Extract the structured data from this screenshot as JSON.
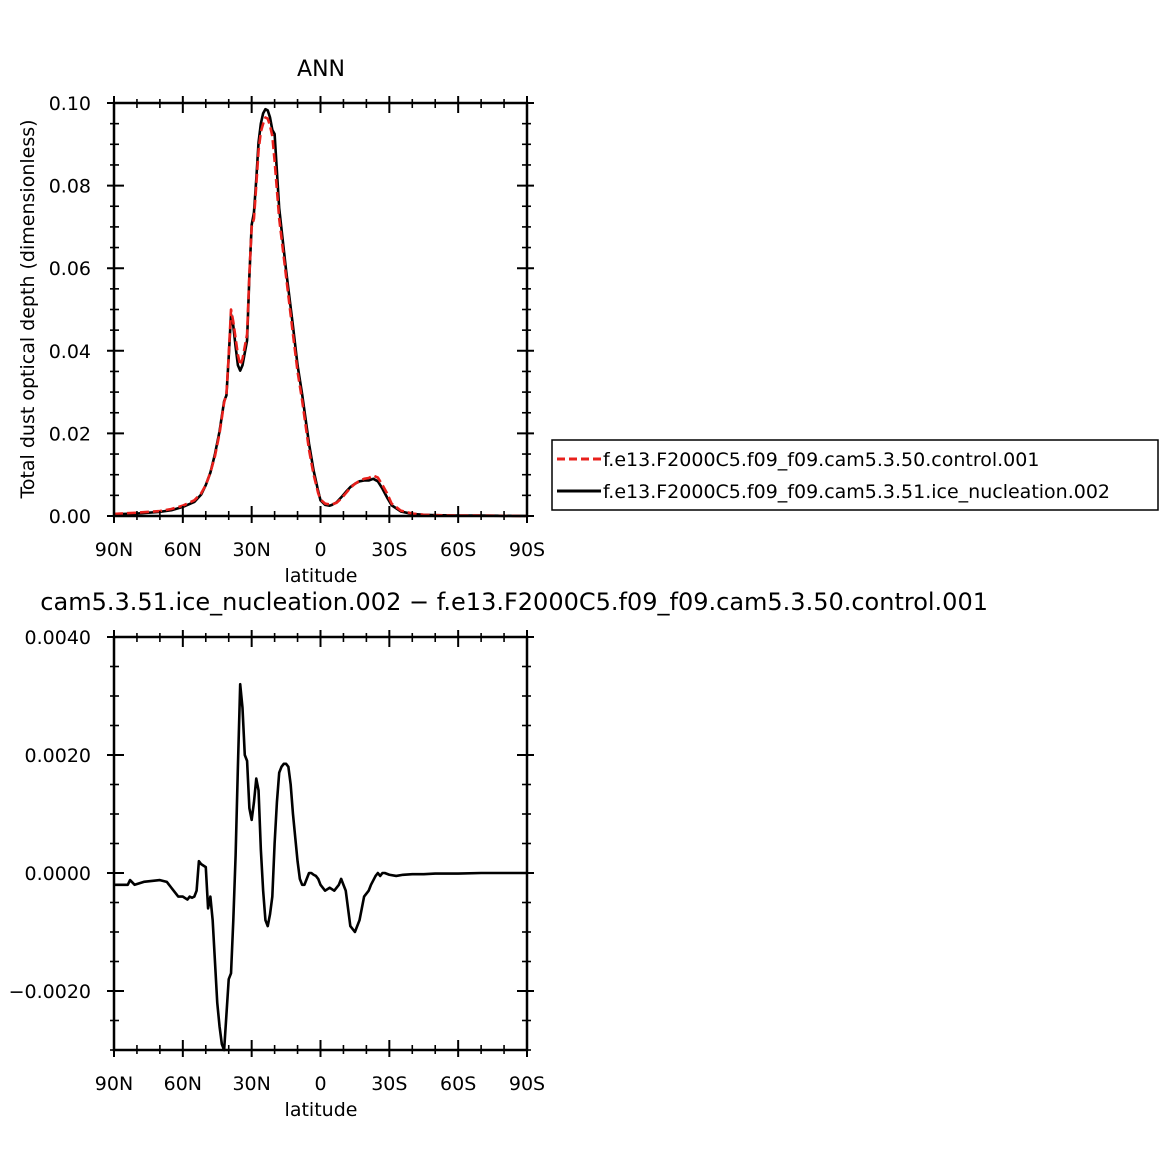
{
  "figure": {
    "top_title": "ANN",
    "diff_title": "cam5.3.51.ice_nucleation.002 − f.e13.F2000C5.f09_f09.cam5.3.50.control.001"
  },
  "chart_data": [
    {
      "type": "line",
      "title": "ANN",
      "xlabel": "latitude",
      "ylabel": "Total dust optical depth (dimensionless)",
      "xlim": [
        90,
        -90
      ],
      "ylim": [
        0,
        0.1
      ],
      "x_tick_values": [
        90,
        60,
        30,
        0,
        -30,
        -60,
        -90
      ],
      "x_tick_labels": [
        "90N",
        "60N",
        "30N",
        "0",
        "30S",
        "60S",
        "90S"
      ],
      "y_tick_values": [
        0,
        0.02,
        0.04,
        0.06,
        0.08,
        0.1
      ],
      "y_tick_labels": [
        "0.00",
        "0.02",
        "0.04",
        "0.06",
        "0.08",
        "0.10"
      ],
      "legend": "right",
      "series": [
        {
          "name": "f.e13.F2000C5.f09_f09.cam5.3.50.control.001",
          "color": "#e8201c",
          "dash": "dashed",
          "x": [
            90,
            80,
            70,
            65,
            60,
            55,
            52,
            50,
            48,
            46,
            44,
            42,
            41,
            40,
            39,
            38,
            37,
            36,
            35,
            34,
            33,
            32,
            31,
            30,
            29,
            28,
            27,
            26,
            25,
            24,
            23,
            22,
            21,
            20,
            18,
            15,
            12,
            10,
            8,
            6,
            5,
            3,
            1,
            0,
            -2,
            -4,
            -5,
            -7,
            -9,
            -11,
            -13,
            -15,
            -17,
            -19,
            -21,
            -23,
            -25,
            -27,
            -29,
            -31,
            -35,
            -40,
            -45,
            -50,
            -60,
            -70,
            -80,
            -90
          ],
          "y": [
            0.0005,
            0.0008,
            0.0012,
            0.0017,
            0.0025,
            0.0038,
            0.0055,
            0.0075,
            0.0105,
            0.0145,
            0.02,
            0.0275,
            0.0295,
            0.039,
            0.05,
            0.047,
            0.043,
            0.039,
            0.0365,
            0.038,
            0.041,
            0.044,
            0.0585,
            0.07,
            0.072,
            0.08,
            0.0885,
            0.093,
            0.095,
            0.0965,
            0.0962,
            0.0945,
            0.092,
            0.086,
            0.072,
            0.058,
            0.044,
            0.035,
            0.028,
            0.02,
            0.016,
            0.01,
            0.0055,
            0.004,
            0.003,
            0.0028,
            0.0028,
            0.0032,
            0.0042,
            0.0055,
            0.0068,
            0.0078,
            0.0085,
            0.009,
            0.0092,
            0.0098,
            0.0093,
            0.0075,
            0.0055,
            0.003,
            0.0013,
            0.0006,
            0.0003,
            0.0002,
            0.0001,
            0.0001,
            5e-05,
            0.0
          ]
        },
        {
          "name": "f.e13.F2000C5.f09_f09.cam5.3.51.ice_nucleation.002",
          "color": "#000000",
          "dash": "solid",
          "x": [
            90,
            80,
            70,
            65,
            60,
            55,
            52,
            50,
            48,
            46,
            44,
            42,
            41,
            40,
            39,
            38,
            37,
            36,
            35,
            34,
            33,
            32,
            31,
            30,
            29,
            28,
            27,
            26,
            25,
            24,
            23,
            22,
            21,
            20,
            18,
            15,
            12,
            10,
            8,
            6,
            5,
            3,
            1,
            0,
            -2,
            -4,
            -5,
            -7,
            -9,
            -11,
            -13,
            -15,
            -17,
            -19,
            -21,
            -23,
            -25,
            -27,
            -29,
            -31,
            -35,
            -40,
            -45,
            -50,
            -60,
            -70,
            -80,
            -90
          ],
          "y": [
            0.0004,
            0.0006,
            0.001,
            0.0014,
            0.0022,
            0.0034,
            0.0052,
            0.0075,
            0.0105,
            0.015,
            0.0205,
            0.0278,
            0.0292,
            0.0385,
            0.0488,
            0.046,
            0.041,
            0.0365,
            0.0352,
            0.0365,
            0.0395,
            0.0425,
            0.058,
            0.0705,
            0.0735,
            0.0815,
            0.0905,
            0.095,
            0.0975,
            0.0985,
            0.0982,
            0.0965,
            0.0935,
            0.0925,
            0.0745,
            0.0595,
            0.046,
            0.0365,
            0.0295,
            0.0215,
            0.0175,
            0.011,
            0.006,
            0.0038,
            0.0027,
            0.0025,
            0.0027,
            0.0033,
            0.0045,
            0.0058,
            0.007,
            0.0078,
            0.0084,
            0.0086,
            0.0086,
            0.009,
            0.0084,
            0.0066,
            0.0045,
            0.0026,
            0.0011,
            0.0005,
            0.0003,
            0.0002,
            0.0001,
            0.0001,
            5e-05,
            0.0
          ]
        }
      ]
    },
    {
      "type": "line",
      "title": "cam5.3.51.ice_nucleation.002 − f.e13.F2000C5.f09_f09.cam5.3.50.control.001",
      "xlabel": "latitude",
      "ylabel": "",
      "xlim": [
        90,
        -90
      ],
      "ylim": [
        -0.003,
        0.004
      ],
      "x_tick_values": [
        90,
        60,
        30,
        0,
        -30,
        -60,
        -90
      ],
      "x_tick_labels": [
        "90N",
        "60N",
        "30N",
        "0",
        "30S",
        "60S",
        "90S"
      ],
      "y_tick_values": [
        -0.002,
        0.0,
        0.002,
        0.004
      ],
      "y_tick_labels": [
        "−0.0020",
        "0.0000",
        "0.0020",
        "0.0040"
      ],
      "series": [
        {
          "name": "",
          "color": "#000000",
          "dash": "solid",
          "x": [
            90,
            84,
            83,
            81,
            77,
            70,
            67,
            65,
            62,
            60,
            58,
            57,
            56,
            55,
            54,
            53,
            52,
            50,
            49,
            48,
            47,
            46,
            45,
            44,
            43,
            42,
            41,
            40,
            39,
            38,
            37,
            36,
            35,
            34,
            33,
            32,
            31,
            30,
            29,
            28,
            27,
            26,
            25,
            24,
            23,
            22,
            21,
            20,
            19,
            18,
            17,
            16,
            15,
            14,
            13,
            12,
            11,
            10,
            9,
            8,
            7,
            6,
            5,
            4,
            3,
            2,
            1,
            0,
            -2,
            -4,
            -6,
            -8,
            -9,
            -11,
            -13,
            -15,
            -17,
            -19,
            -21,
            -22,
            -24,
            -25,
            -26,
            -27,
            -28,
            -30,
            -33,
            -36,
            -40,
            -45,
            -50,
            -60,
            -70,
            -80,
            -90
          ],
          "y": [
            -0.0002,
            -0.0002,
            -0.00012,
            -0.0002,
            -0.00015,
            -0.00012,
            -0.00015,
            -0.00025,
            -0.0004,
            -0.0004,
            -0.00045,
            -0.0004,
            -0.00042,
            -0.0004,
            -0.0003,
            0.0002,
            0.00015,
            0.0001,
            -0.0006,
            -0.0004,
            -0.0008,
            -0.0015,
            -0.0022,
            -0.0026,
            -0.0029,
            -0.003,
            -0.0024,
            -0.0018,
            -0.0017,
            -0.0008,
            0.0003,
            0.0018,
            0.0032,
            0.0028,
            0.002,
            0.0019,
            0.0011,
            0.0009,
            0.0012,
            0.0016,
            0.0014,
            0.0004,
            -0.0003,
            -0.0008,
            -0.0009,
            -0.0007,
            -0.0004,
            0.0005,
            0.0012,
            0.0017,
            0.0018,
            0.00185,
            0.00185,
            0.0018,
            0.0015,
            0.001,
            0.0006,
            0.0002,
            -0.0001,
            -0.0002,
            -0.0002,
            -0.0001,
            0.0,
            0.0,
            -3e-05,
            -5e-05,
            -0.0001,
            -0.0002,
            -0.0003,
            -0.00025,
            -0.0003,
            -0.0002,
            -0.0001,
            -0.0003,
            -0.0009,
            -0.001,
            -0.0008,
            -0.0004,
            -0.0003,
            -0.0002,
            -5e-05,
            0.0,
            -5e-05,
            0.0,
            0.0,
            -3e-05,
            -5e-05,
            -3e-05,
            -2e-05,
            -2e-05,
            -1e-05,
            -1e-05,
            0.0,
            0.0,
            0.0
          ]
        }
      ]
    }
  ]
}
